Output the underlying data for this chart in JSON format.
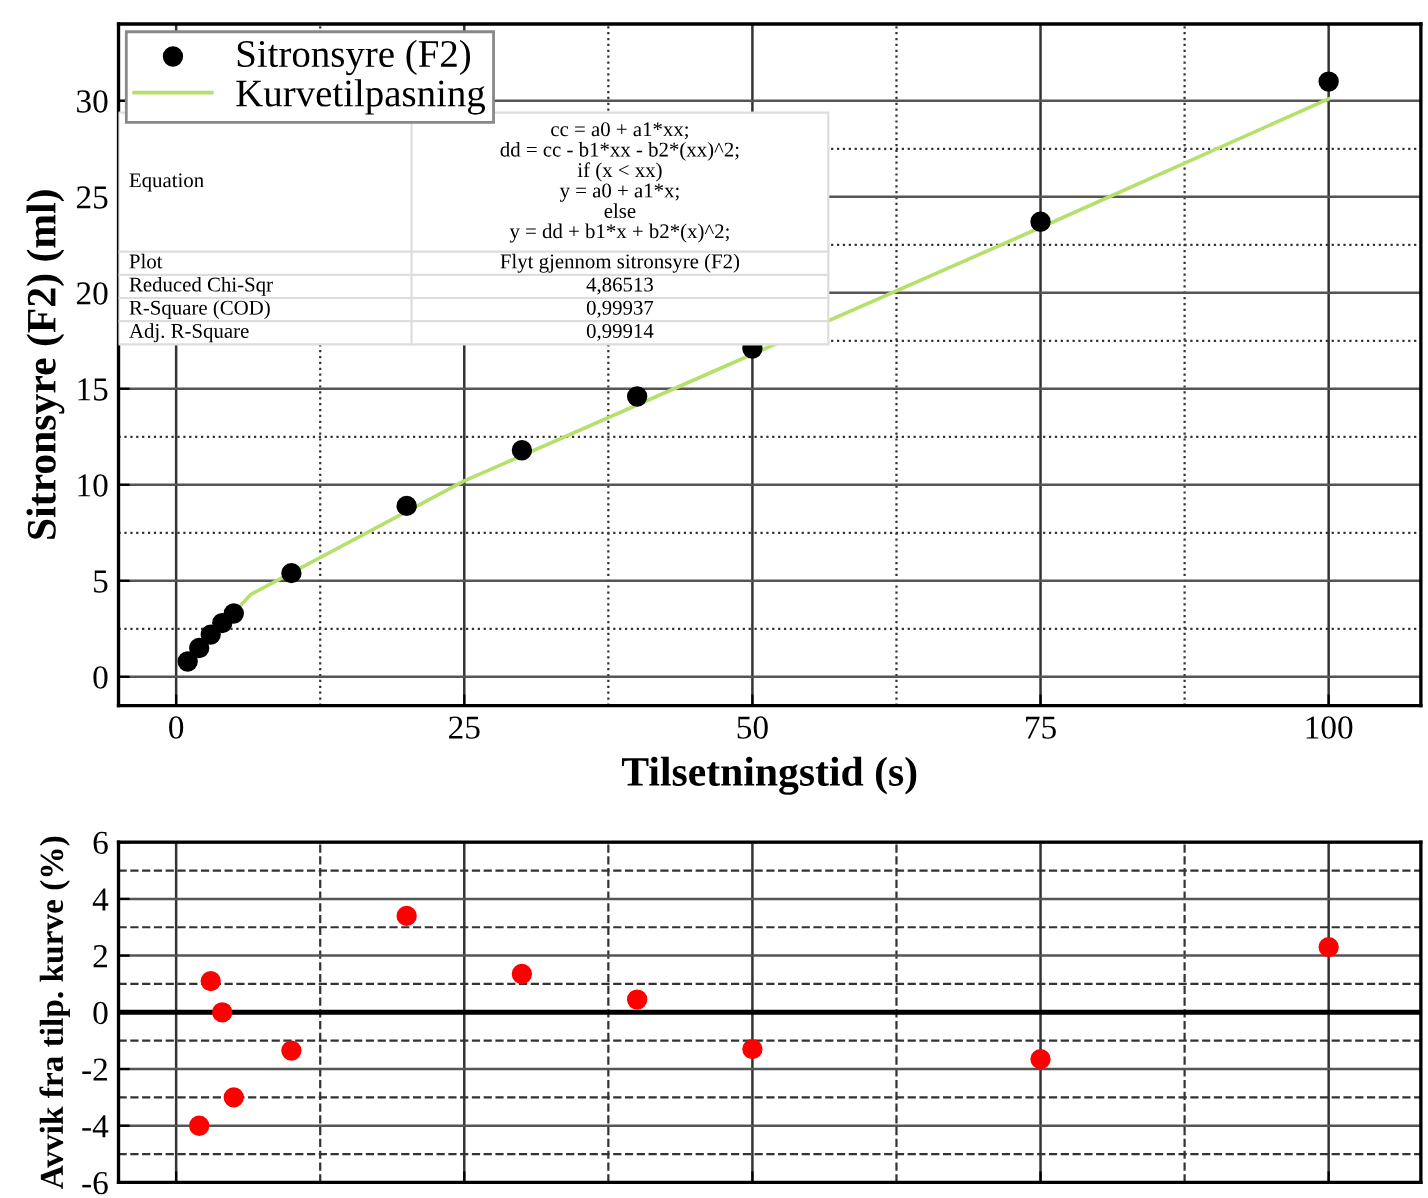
{
  "chart_data": [
    {
      "type": "scatter",
      "xlabel": "Tilsetningstid (s)",
      "ylabel": "Sitronsyre (F2) (ml)",
      "series": [
        {
          "name": "Sitronsyre (F2)",
          "color": "#000000",
          "marker": "circle",
          "x": [
            1,
            2,
            3,
            4,
            5,
            10,
            20,
            30,
            40,
            50,
            75,
            100
          ],
          "values": [
            0.8,
            1.5,
            2.2,
            2.8,
            3.3,
            5.4,
            8.9,
            11.8,
            14.6,
            17.1,
            23.7,
            31.0
          ]
        },
        {
          "name": "Kurvetilpasning",
          "type": "line",
          "color": "#b5e06b",
          "x": [
            1,
            6.5,
            25,
            50,
            75,
            100
          ],
          "values": [
            0.8,
            4.3,
            10.2,
            16.8,
            23.4,
            30.1
          ]
        }
      ],
      "xlim": [
        -5,
        108
      ],
      "xticks": [
        0,
        25,
        50,
        75,
        100
      ],
      "ylim": [
        -1.5,
        34
      ],
      "yticks": [
        0,
        5,
        10,
        15,
        20,
        25,
        30
      ],
      "grid": true,
      "legend": "top left",
      "annotations": [
        "Equation",
        "cc = a0 + a1*xx;\ndd = cc - b1*xx - b2*(xx)^2;\nif (x < xx)\ny = a0 + a1*x;\nelse\ny = dd + b1*x + b2*(x)^2;",
        "Plot",
        "Flyt gjennom sitronsyre (F2)",
        "Reduced Chi-Sqr",
        "4,86513",
        "R-Square (COD)",
        "0,99937",
        "Adj. R-Square",
        "0,99914"
      ]
    },
    {
      "type": "scatter",
      "ylabel": "Avvik fra tilp. kurve (%)",
      "series": [
        {
          "color": "#ff0000",
          "marker": "circle",
          "x": [
            2,
            3,
            4,
            5,
            10,
            20,
            30,
            40,
            50,
            75,
            100
          ],
          "values": [
            -4.0,
            1.1,
            0.0,
            -3.0,
            -1.35,
            3.4,
            1.35,
            0.45,
            -1.3,
            -1.65,
            2.3
          ]
        }
      ],
      "xlim": [
        -5,
        108
      ],
      "xticks": [
        0,
        25,
        50,
        75,
        100
      ],
      "ylim": [
        -6,
        6
      ],
      "yticks": [
        -6,
        -4,
        -2,
        0,
        2,
        4,
        6
      ],
      "grid": true,
      "tick_labels": "y",
      "ref_lines": [
        {
          "axis": "y",
          "value": 0,
          "color": "#000000"
        }
      ]
    }
  ]
}
